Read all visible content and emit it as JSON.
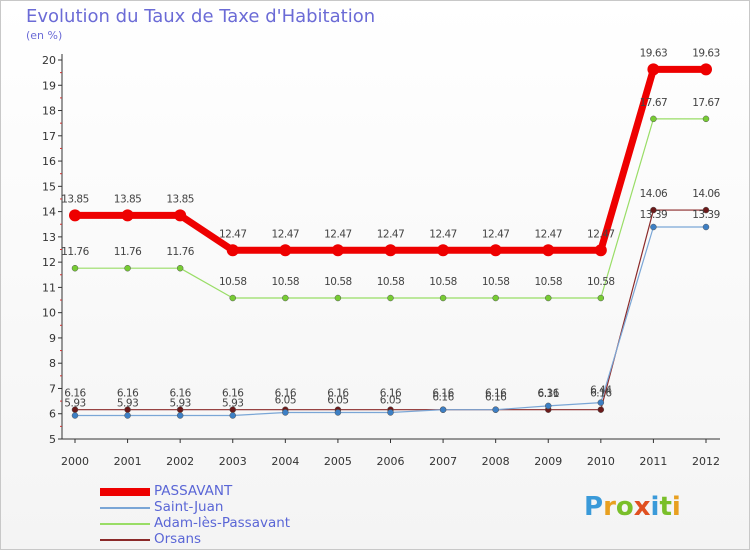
{
  "title": "Evolution du Taux de Taxe d'Habitation",
  "unit": "(en %)",
  "logo": [
    "P",
    "r",
    "o",
    "x",
    "i",
    "t",
    "i"
  ],
  "logo_colors": [
    "#3a9ad9",
    "#e8a020",
    "#7abf2a",
    "#e05020",
    "#3a9ad9",
    "#7abf2a",
    "#e8a020"
  ],
  "chart_data": {
    "type": "line",
    "x": [
      "2000",
      "2001",
      "2002",
      "2003",
      "2004",
      "2005",
      "2006",
      "2007",
      "2008",
      "2009",
      "2010",
      "2011",
      "2012"
    ],
    "ylim": [
      5,
      20
    ],
    "y_ticks": [
      "5",
      "6",
      "7",
      "8",
      "9",
      "10",
      "11",
      "12",
      "13",
      "14",
      "15",
      "16",
      "17",
      "18",
      "19",
      "20"
    ],
    "grid": false,
    "legend_position": "bottom-left",
    "series": [
      {
        "name": "PASSAVANT",
        "color": "#ee0000",
        "values": [
          13.85,
          13.85,
          13.85,
          12.47,
          12.47,
          12.47,
          12.47,
          12.47,
          12.47,
          12.47,
          12.47,
          19.63,
          19.63
        ],
        "labels": [
          "13.85",
          "13.85",
          "13.85",
          "12.47",
          "12.47",
          "12.47",
          "12.47",
          "12.47",
          "12.47",
          "12.47",
          "12.47",
          "19.63",
          "19.63"
        ]
      },
      {
        "name": "Saint-Juan",
        "color": "#7aa6d6",
        "values": [
          5.93,
          5.93,
          5.93,
          5.93,
          6.05,
          6.05,
          6.05,
          6.16,
          6.16,
          6.31,
          6.44,
          13.39,
          13.39
        ],
        "labels": [
          "5.93",
          "5.93",
          "5.93",
          "5.93",
          "6.05",
          "6.05",
          "6.05",
          "6.16",
          "6.16",
          "6.31",
          "6.44",
          "13.39",
          "13.39"
        ]
      },
      {
        "name": "Adam-lès-Passavant",
        "color": "#99dd66",
        "values": [
          11.76,
          11.76,
          11.76,
          10.58,
          10.58,
          10.58,
          10.58,
          10.58,
          10.58,
          10.58,
          10.58,
          17.67,
          17.67
        ],
        "labels": [
          "11.76",
          "11.76",
          "11.76",
          "10.58",
          "10.58",
          "10.58",
          "10.58",
          "10.58",
          "10.58",
          "10.58",
          "10.58",
          "17.67",
          "17.67"
        ]
      },
      {
        "name": "Orsans",
        "color": "#8b2a2a",
        "values": [
          6.16,
          6.16,
          6.16,
          6.16,
          6.16,
          6.16,
          6.16,
          6.16,
          6.16,
          6.16,
          6.16,
          14.06,
          14.06
        ],
        "labels": [
          "6.16",
          "6.16",
          "6.16",
          "6.16",
          "6.16",
          "6.16",
          "6.16",
          "6.16",
          "6.16",
          "6.16",
          "6.16",
          "14.06",
          "14.06"
        ]
      }
    ]
  }
}
